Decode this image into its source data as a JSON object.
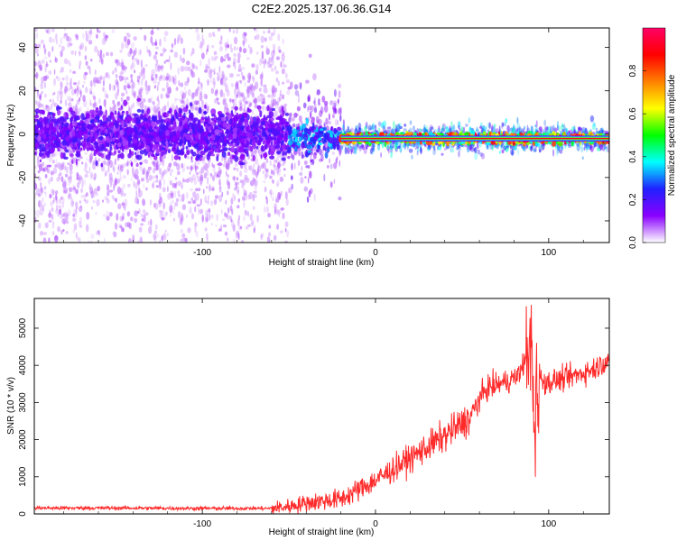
{
  "figure_title": "C2E2.2025.137.06.36.G14",
  "chart_data": [
    {
      "type": "heatmap",
      "title": "",
      "xlabel": "Height of straight line (km)",
      "ylabel": "Frequency (Hz)",
      "xlim": [
        -197,
        135
      ],
      "ylim": [
        -50,
        49
      ],
      "xticks": [
        -100,
        0,
        100
      ],
      "yticks": [
        -40,
        -20,
        0,
        20,
        40
      ],
      "colorbar": {
        "label": "Normalized spectral amplitude",
        "range": [
          0,
          1
        ],
        "ticks": [
          0.0,
          0.2,
          0.4,
          0.6,
          0.8
        ],
        "colormap": [
          "#ffffff",
          "#8a00ff",
          "#2020ff",
          "#00ffff",
          "#00ff00",
          "#ffff00",
          "#ff8000",
          "#ff0000",
          "#ff0066"
        ]
      },
      "bands": [
        {
          "x_start": -197,
          "x_end": -50,
          "freq_center": 0,
          "core_halfwidth_hz": 10,
          "spread_halfwidth_hz": 49,
          "amplitude": 0.2
        },
        {
          "x_start": -50,
          "x_end": -20,
          "freq_center": -2,
          "core_halfwidth_hz": 6,
          "spread_halfwidth_hz": 20,
          "amplitude": 0.35
        },
        {
          "x_start": -20,
          "x_end": 135,
          "freq_center": -2,
          "core_halfwidth_hz": 2,
          "spread_halfwidth_hz": 5,
          "amplitude": 0.85
        }
      ],
      "grid": false
    },
    {
      "type": "line",
      "title": "",
      "xlabel": "Height of straight line (km)",
      "ylabel": "SNR (10 * v/v)",
      "xlim": [
        -197,
        135
      ],
      "ylim": [
        0,
        5800
      ],
      "xticks": [
        -100,
        0,
        100
      ],
      "yticks": [
        0,
        1000,
        2000,
        3000,
        4000,
        5000
      ],
      "series": [
        {
          "color": "#ff2a2a",
          "x": [
            -197,
            -150,
            -100,
            -60,
            -50,
            -40,
            -20,
            0,
            20,
            40,
            55,
            60,
            65,
            75,
            82,
            85,
            88,
            90,
            91,
            92,
            93,
            95,
            100,
            110,
            120,
            128,
            135
          ],
          "y": [
            160,
            160,
            150,
            150,
            200,
            300,
            400,
            900,
            1500,
            2100,
            2600,
            3100,
            3400,
            3550,
            3700,
            4000,
            4300,
            4800,
            3000,
            1800,
            3500,
            3600,
            3550,
            3650,
            3800,
            3950,
            4200
          ]
        }
      ],
      "grid": false
    }
  ]
}
